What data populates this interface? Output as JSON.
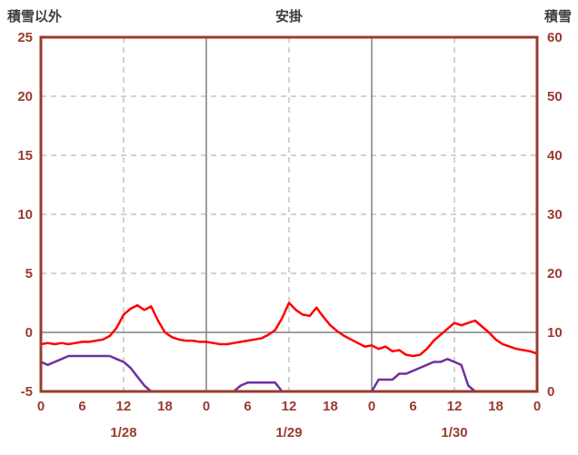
{
  "header": {
    "left_axis_title": "積雪以外",
    "title": "安掛",
    "right_axis_title": "積雪"
  },
  "colors": {
    "frame": "#9a3b2e",
    "tick_text": "#9a3b2e",
    "grid": "#a6a6a6",
    "solid_grid": "#808080",
    "zero_line": "#808080"
  },
  "chart_data": {
    "type": "line",
    "title": "安掛",
    "grid": true,
    "legend": "none",
    "left_axis": {
      "label": "積雪以外",
      "min": -5,
      "max": 25,
      "ticks": [
        25,
        20,
        15,
        10,
        5,
        0,
        -5
      ],
      "grid_values": [
        20,
        15,
        10,
        5
      ]
    },
    "right_axis": {
      "label": "積雪",
      "min": 0,
      "max": 60,
      "ticks": [
        60,
        50,
        40,
        30,
        20,
        10,
        0
      ]
    },
    "x_axis": {
      "max_hour": 72,
      "tick_hours": [
        0,
        6,
        12,
        18,
        24,
        30,
        36,
        42,
        48,
        54,
        60,
        66,
        72
      ],
      "tick_labels": [
        "0",
        "6",
        "12",
        "18",
        "0",
        "6",
        "12",
        "18",
        "0",
        "6",
        "12",
        "18",
        "0"
      ],
      "dashed_gridline_hours": [
        12,
        36,
        60
      ],
      "solid_gridline_hours": [
        24,
        48
      ],
      "day_labels": [
        {
          "label": "1/28",
          "hour": 12
        },
        {
          "label": "1/29",
          "hour": 36
        },
        {
          "label": "1/30",
          "hour": 60
        }
      ]
    },
    "hours": [
      0,
      1,
      2,
      3,
      4,
      5,
      6,
      7,
      8,
      9,
      10,
      11,
      12,
      13,
      14,
      15,
      16,
      17,
      18,
      19,
      20,
      21,
      22,
      23,
      24,
      25,
      26,
      27,
      28,
      29,
      30,
      31,
      32,
      33,
      34,
      35,
      36,
      37,
      38,
      39,
      40,
      41,
      42,
      43,
      44,
      45,
      46,
      47,
      48,
      49,
      50,
      51,
      52,
      53,
      54,
      55,
      56,
      57,
      58,
      59,
      60,
      61,
      62,
      63,
      64,
      65,
      66,
      67,
      68,
      69,
      70,
      71,
      72
    ],
    "series": [
      {
        "id": "red-series",
        "color": "#ff0000",
        "axis": "left",
        "values": [
          -1.0,
          -0.9,
          -1.0,
          -0.9,
          -1.0,
          -0.9,
          -0.8,
          -0.8,
          -0.7,
          -0.6,
          -0.3,
          0.4,
          1.5,
          2.0,
          2.3,
          1.9,
          2.2,
          1.0,
          0.0,
          -0.4,
          -0.6,
          -0.7,
          -0.7,
          -0.8,
          -0.8,
          -0.9,
          -1.0,
          -1.0,
          -0.9,
          -0.8,
          -0.7,
          -0.6,
          -0.5,
          -0.2,
          0.2,
          1.2,
          2.5,
          1.9,
          1.5,
          1.4,
          2.1,
          1.3,
          0.6,
          0.1,
          -0.3,
          -0.6,
          -0.9,
          -1.2,
          -1.1,
          -1.4,
          -1.2,
          -1.6,
          -1.5,
          -1.9,
          -2.0,
          -1.9,
          -1.4,
          -0.7,
          -0.2,
          0.3,
          0.8,
          0.6,
          0.8,
          1.0,
          0.5,
          0.0,
          -0.6,
          -1.0,
          -1.2,
          -1.4,
          -1.5,
          -1.6,
          -1.8
        ]
      },
      {
        "id": "purple-series",
        "color": "#7030a0",
        "axis": "right",
        "values": [
          5,
          4.5,
          5,
          5.5,
          6,
          6,
          6,
          6,
          6,
          6,
          6,
          5.5,
          5,
          4,
          2.5,
          1,
          0,
          0,
          0,
          0,
          0,
          0,
          0,
          0,
          0,
          0,
          0,
          0,
          0,
          1,
          1.5,
          1.5,
          1.5,
          1.5,
          1.5,
          0,
          0,
          0,
          0,
          0,
          0,
          0,
          0,
          0,
          0,
          0,
          0,
          0,
          0,
          2,
          2,
          2,
          3,
          3,
          3.5,
          4,
          4.5,
          5,
          5,
          5.5,
          5,
          4.5,
          1,
          0,
          0,
          0,
          0,
          0,
          0,
          0,
          0,
          0,
          0
        ]
      }
    ]
  }
}
